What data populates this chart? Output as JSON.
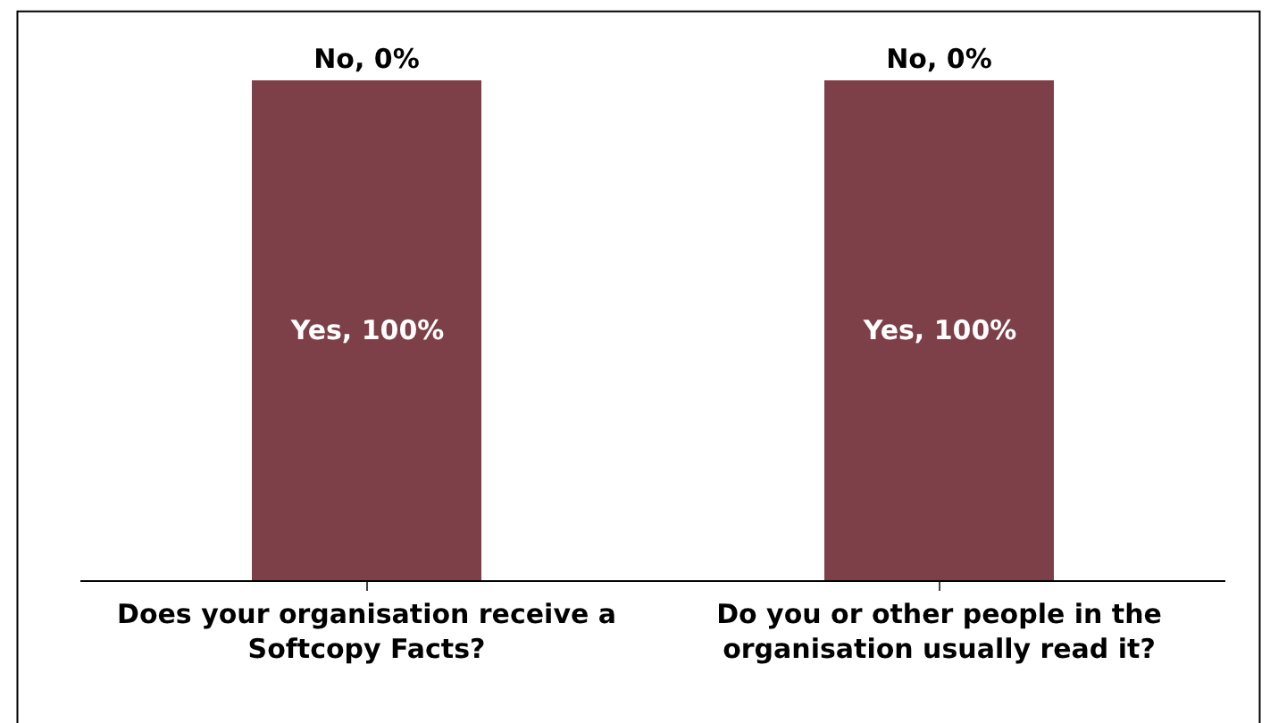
{
  "chart_data": {
    "type": "bar",
    "stacked": true,
    "tick_labels": "x",
    "legend": false,
    "categories": [
      "Does your organisation receive a Softcopy Facts?",
      "Do you or other people in the organisation usually read it?"
    ],
    "series": [
      {
        "color": "#7d3f48",
        "values": [
          100,
          100
        ],
        "value_labels": [
          "Yes, 100%",
          "Yes, 100%"
        ]
      },
      {
        "color": "#5a2a32",
        "values": [
          0,
          0
        ],
        "value_labels": [
          "No, 0%",
          "No, 0%"
        ]
      }
    ]
  }
}
